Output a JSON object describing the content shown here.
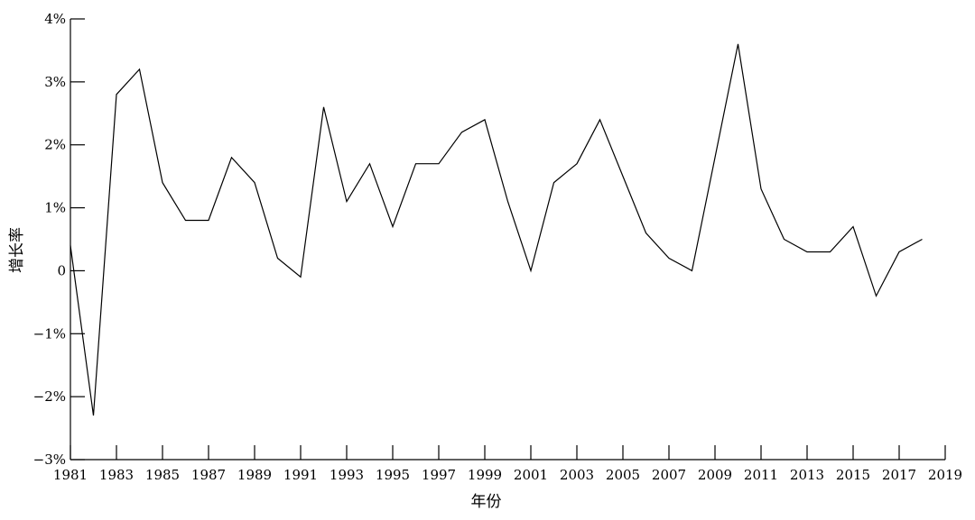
{
  "chart_data": {
    "type": "line",
    "title": "",
    "xlabel": "年份",
    "ylabel": "增长率",
    "xlim": [
      1981,
      2019
    ],
    "ylim": [
      -3,
      4
    ],
    "x_ticks": [
      1981,
      1983,
      1985,
      1987,
      1989,
      1991,
      1993,
      1995,
      1997,
      1999,
      2001,
      2003,
      2005,
      2007,
      2009,
      2011,
      2013,
      2015,
      2017,
      2019
    ],
    "x_tick_labels": [
      "1981",
      "1983",
      "1985",
      "1987",
      "1989",
      "1991",
      "1993",
      "1995",
      "1997",
      "1999",
      "2001",
      "2003",
      "2005",
      "2007",
      "2009",
      "2011",
      "2013",
      "2015",
      "2017",
      "2019"
    ],
    "y_ticks": [
      -3,
      -2,
      -1,
      0,
      1,
      2,
      3,
      4
    ],
    "y_tick_labels": [
      "−3%",
      "−2%",
      "−1%",
      "0",
      "1%",
      "2%",
      "3%",
      "4%"
    ],
    "grid": false,
    "line_color": "#000000",
    "series": [
      {
        "x": [
          1981,
          1982,
          1983,
          1984,
          1985,
          1986,
          1987,
          1988,
          1989,
          1990,
          1991,
          1992,
          1993,
          1994,
          1995,
          1996,
          1997,
          1998,
          1999,
          2000,
          2001,
          2002,
          2003,
          2004,
          2005,
          2006,
          2007,
          2008,
          2009,
          2010,
          2011,
          2012,
          2013,
          2014,
          2015,
          2016,
          2017,
          2018
        ],
        "values": [
          0.4,
          -2.3,
          2.8,
          3.2,
          1.4,
          0.8,
          0.8,
          1.8,
          1.4,
          0.2,
          -0.1,
          2.6,
          1.1,
          1.7,
          0.7,
          1.7,
          1.7,
          2.2,
          2.4,
          1.1,
          0.0,
          1.4,
          1.7,
          2.4,
          1.5,
          0.6,
          0.2,
          0.0,
          1.8,
          3.6,
          1.3,
          0.5,
          0.3,
          0.3,
          0.7,
          -0.4,
          0.3,
          0.5
        ]
      }
    ]
  }
}
